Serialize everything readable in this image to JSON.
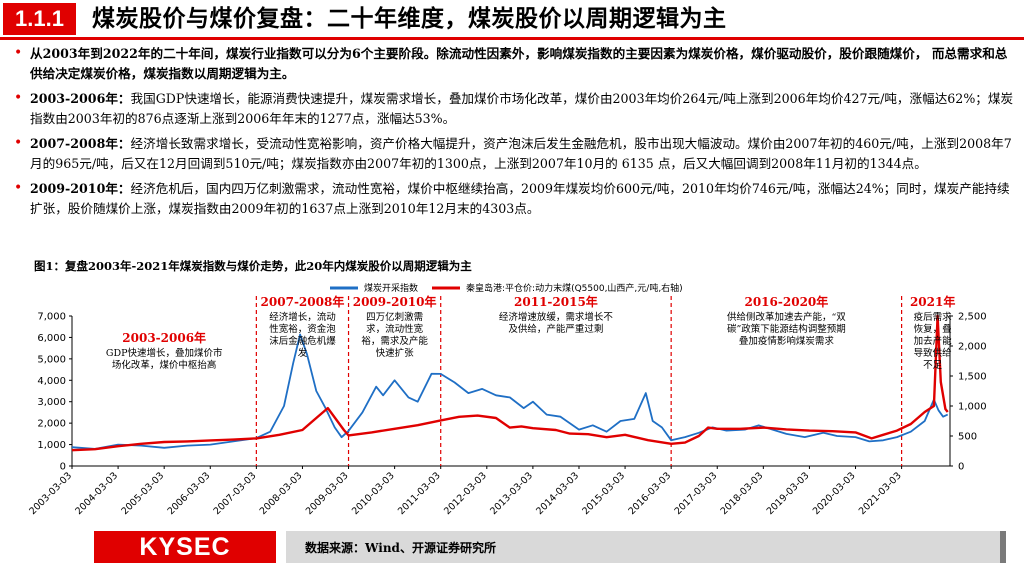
{
  "header": {
    "section_number": "1.1.1",
    "title": "煤炭股价与煤价复盘：二十年维度，煤炭股价以周期逻辑为主"
  },
  "bullets": [
    {
      "lead": "",
      "text": "从2003年到2022年的二十年间，煤炭行业指数可以分为6个主要阶段。除流动性因素外，影响煤炭指数的主要因素为煤炭价格，煤价驱动股价，股价跟随煤价， 而总需求和总供给决定煤炭价格，煤炭指数以周期逻辑为主。"
    },
    {
      "lead": "2003-2006年：",
      "text": "我国GDP快速增长，能源消费快速提升，煤炭需求增长，叠加煤价市场化改革，煤价由2003年均价264元/吨上涨到2006年均价427元/吨，涨幅达62%；煤炭指数由2003年初的876点逐渐上涨到2006年年末的1277点，涨幅达53%。"
    },
    {
      "lead": "2007-2008年：",
      "text": "经济增长致需求增长，受流动性宽裕影响，资产价格大幅提升，资产泡沫后发生金融危机，股市出现大幅波动。煤价由2007年初的460元/吨，上涨到2008年7月的965元/吨，后又在12月回调到510元/吨；煤炭指数亦由2007年初的1300点，上涨到2007年10月的 6135 点，后又大幅回调到2008年11月初的1344点。"
    },
    {
      "lead": "2009-2010年：",
      "text": "经济危机后，国内四万亿刺激需求，流动性宽裕，煤价中枢继续抬高，2009年煤炭均价600元/吨，2010年均价746元/吨，涨幅达24%；同时，煤炭产能持续扩张，股价随煤价上涨，煤炭指数由2009年初的1637点上涨到2010年12月末的4303点。"
    }
  ],
  "figure_title": "图1：复盘2003年-2021年煤炭指数与煤价走势，此20年内煤炭股价以周期逻辑为主",
  "chart_data": {
    "type": "line",
    "series": [
      {
        "name": "煤炭开采指数",
        "axis": "left",
        "color": "#1f6fc5",
        "x": [
          2003.0,
          2003.5,
          2004.0,
          2004.5,
          2005.0,
          2005.5,
          2006.0,
          2006.5,
          2007.0,
          2007.3,
          2007.6,
          2007.8,
          2007.95,
          2008.1,
          2008.3,
          2008.5,
          2008.7,
          2008.85,
          2009.0,
          2009.3,
          2009.6,
          2009.75,
          2010.0,
          2010.3,
          2010.5,
          2010.8,
          2011.0,
          2011.3,
          2011.6,
          2011.9,
          2012.2,
          2012.5,
          2012.8,
          2013.0,
          2013.3,
          2013.6,
          2014.0,
          2014.3,
          2014.6,
          2014.9,
          2015.2,
          2015.45,
          2015.6,
          2015.8,
          2016.0,
          2016.3,
          2016.6,
          2016.9,
          2017.2,
          2017.6,
          2017.9,
          2018.2,
          2018.5,
          2018.9,
          2019.3,
          2019.6,
          2020.0,
          2020.3,
          2020.6,
          2020.9,
          2021.2,
          2021.5,
          2021.7,
          2021.8,
          2021.9,
          2022.0
        ],
        "y": [
          876,
          800,
          1000,
          950,
          850,
          950,
          1000,
          1150,
          1300,
          1600,
          2800,
          4800,
          6135,
          5200,
          3500,
          2700,
          1800,
          1344,
          1637,
          2500,
          3700,
          3300,
          4000,
          3200,
          3000,
          4303,
          4300,
          3900,
          3400,
          3600,
          3300,
          3200,
          2700,
          3000,
          2400,
          2300,
          1700,
          1900,
          1600,
          2100,
          2200,
          3400,
          2100,
          1800,
          1200,
          1350,
          1550,
          1800,
          1650,
          1700,
          1900,
          1700,
          1500,
          1350,
          1550,
          1400,
          1350,
          1150,
          1200,
          1350,
          1600,
          2100,
          3100,
          2600,
          2300,
          2400
        ]
      },
      {
        "name": "秦皇岛港:平仓价:动力末煤(Q5500,山西产,元/吨,右轴)",
        "axis": "right",
        "color": "#e00000",
        "x": [
          2003.0,
          2003.5,
          2004.0,
          2004.5,
          2005.0,
          2005.5,
          2006.0,
          2006.5,
          2007.0,
          2007.5,
          2008.0,
          2008.3,
          2008.55,
          2008.9,
          2009.0,
          2009.5,
          2010.0,
          2010.5,
          2011.0,
          2011.4,
          2011.8,
          2012.2,
          2012.5,
          2012.75,
          2013.0,
          2013.5,
          2013.8,
          2014.2,
          2014.6,
          2015.0,
          2015.5,
          2016.0,
          2016.3,
          2016.6,
          2016.8,
          2017.0,
          2017.5,
          2018.0,
          2018.5,
          2019.0,
          2019.5,
          2020.0,
          2020.35,
          2020.6,
          2020.9,
          2021.2,
          2021.5,
          2021.7,
          2021.78,
          2021.85,
          2021.95,
          2022.0
        ],
        "y": [
          264,
          280,
          330,
          370,
          400,
          410,
          427,
          440,
          460,
          520,
          600,
          800,
          965,
          600,
          510,
          560,
          620,
          680,
          760,
          820,
          840,
          800,
          640,
          660,
          630,
          600,
          540,
          530,
          480,
          520,
          430,
          370,
          390,
          500,
          640,
          620,
          620,
          640,
          610,
          590,
          580,
          560,
          460,
          520,
          590,
          700,
          900,
          1000,
          2500,
          1400,
          950,
          900
        ]
      }
    ],
    "xlabels": [
      "2003-03-03",
      "2004-03-03",
      "2005-03-03",
      "2006-03-03",
      "2007-03-03",
      "2008-03-03",
      "2009-03-03",
      "2010-03-03",
      "2011-03-03",
      "2012-03-03",
      "2013-03-03",
      "2014-03-03",
      "2015-03-03",
      "2016-03-03",
      "2017-03-03",
      "2018-03-03",
      "2019-03-03",
      "2020-03-03",
      "2021-03-03"
    ],
    "xlim": [
      2003.0,
      2022.05
    ],
    "ylim_left": [
      0,
      7000
    ],
    "yticks_left": [
      0,
      1000,
      2000,
      3000,
      4000,
      5000,
      6000,
      7000
    ],
    "ylim_right": [
      0,
      2500
    ],
    "yticks_right": [
      0,
      500,
      1000,
      1500,
      2000,
      2500
    ],
    "legend_position": "top",
    "period_dividers": [
      2007.0,
      2009.0,
      2011.0,
      2016.0,
      2021.0
    ],
    "annotations": [
      {
        "title": "2003-2006年",
        "x_center": 2005.0,
        "lines": [
          "GDP快速增长，叠加煤价市",
          "场化改革，煤价中枢抬高"
        ]
      },
      {
        "title": "2007-2008年",
        "x_center": 2008.0,
        "lines": [
          "经济增长，流动",
          "性宽裕，资金泡",
          "沫后金融危机爆",
          "发"
        ]
      },
      {
        "title": "2009-2010年",
        "x_center": 2010.0,
        "lines": [
          "四万亿刺激需",
          "求，流动性宽",
          "裕，需求及产能",
          "快速扩张"
        ]
      },
      {
        "title": "2011-2015年",
        "x_center": 2013.5,
        "lines": [
          "经济增速放缓，需求增长不",
          "及供给，产能严重过剩"
        ]
      },
      {
        "title": "2016-2020年",
        "x_center": 2018.5,
        "lines": [
          "供给侧改革加速去产能，“双",
          "碳”政策下能源结构调整预期",
          "叠加疫情影响煤炭需求"
        ]
      },
      {
        "title": "2021年",
        "x_center": 2021.5,
        "lines": [
          "疫后需求",
          "恢复，叠",
          "加去产能",
          "导致供给",
          "不足"
        ]
      }
    ]
  },
  "footer": {
    "logo": "KYSEC",
    "source": "数据来源：Wind、开源证券研究所"
  }
}
